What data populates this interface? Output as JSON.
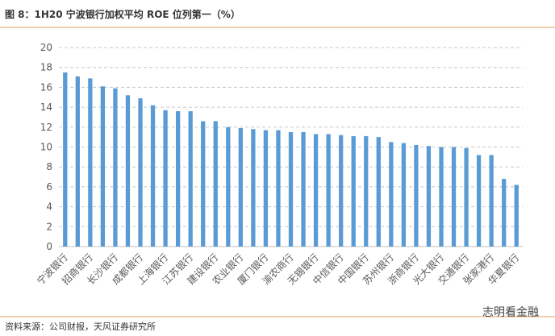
{
  "chart_data": {
    "type": "bar",
    "title": "图 8：1H20 宁波银行加权平均 ROE 位列第一（%）",
    "source": "资料来源：公司财报，天风证券研究所",
    "watermark": "志明看金融",
    "categories": [
      "宁波银行",
      null,
      "招商银行",
      null,
      "长沙银行",
      null,
      "成都银行",
      null,
      "上海银行",
      null,
      "江苏银行",
      null,
      "建设银行",
      null,
      "农业银行",
      null,
      "厦门银行",
      null,
      "渝农商行",
      null,
      "无锡银行",
      null,
      "中信银行",
      null,
      "中国银行",
      null,
      "苏州银行",
      null,
      "浙商银行",
      null,
      "光大银行",
      null,
      "交通银行",
      null,
      "张家港行",
      null,
      "华夏银行"
    ],
    "values": [
      17.5,
      17.1,
      16.9,
      16.1,
      15.9,
      15.2,
      14.9,
      14.2,
      13.7,
      13.6,
      13.6,
      12.6,
      12.6,
      12.0,
      11.9,
      11.8,
      11.7,
      11.7,
      11.5,
      11.5,
      11.3,
      11.3,
      11.2,
      11.1,
      11.1,
      11.0,
      10.5,
      10.4,
      10.2,
      10.1,
      10.0,
      10.0,
      9.9,
      9.2,
      9.2,
      6.8,
      6.2
    ],
    "color": "#5b9bd5",
    "ylim": [
      0,
      20
    ],
    "yticks": [
      0,
      2,
      4,
      6,
      8,
      10,
      12,
      14,
      16,
      18,
      20
    ],
    "grid": true
  }
}
